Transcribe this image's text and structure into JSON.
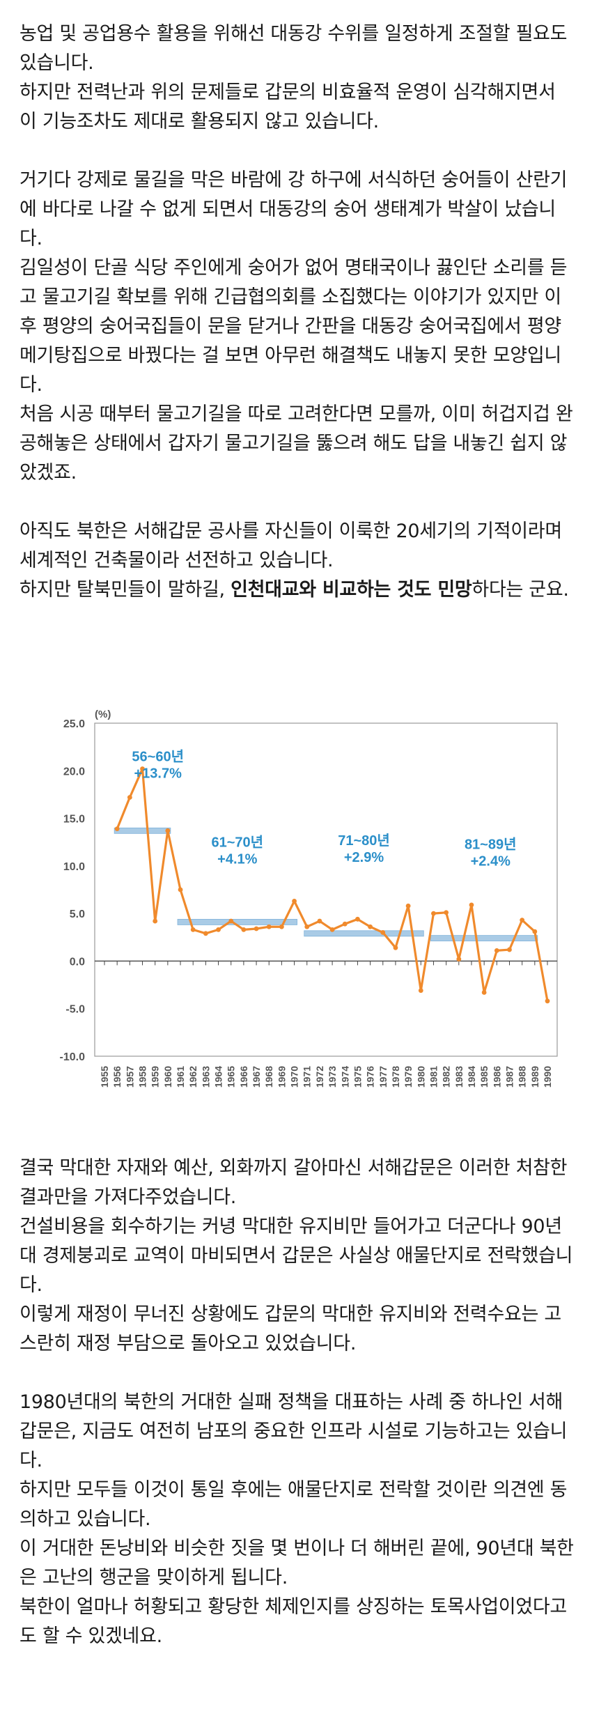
{
  "paragraphs": {
    "p1": "농업 및 공업용수 활용을 위해선 대동강 수위를 일정하게 조절할 필요도 있습니다.\n하지만 전력난과 위의 문제들로 갑문의 비효율적 운영이 심각해지면서 이 기능조차도 제대로 활용되지 않고 있습니다.",
    "p2": "거기다 강제로 물길을 막은 바람에 강 하구에 서식하던 숭어들이 산란기에 바다로 나갈 수 없게 되면서 대동강의 숭어 생태계가 박살이 났습니다.\n김일성이 단골 식당 주인에게 숭어가 없어 명태국이나 끓인단 소리를 듣고 물고기길 확보를 위해 긴급협의회를 소집했다는 이야기가 있지만 이후 평양의 숭어국집들이 문을 닫거나 간판을 대동강 숭어국집에서 평양 메기탕집으로 바꿨다는 걸 보면 아무런 해결책도 내놓지 못한 모양입니다.\n처음 시공 때부터 물고기길을 따로 고려한다면 모를까, 이미 허겁지겁 완공해놓은 상태에서 갑자기 물고기길을 뚫으려 해도 답을 내놓긴 쉽지 않았겠죠.",
    "p3_a": "아직도 북한은 서해갑문 공사를 자신들이 이룩한 20세기의 기적이라며 세계적인 건축물이라 선전하고 있습니다.\n하지만 탈북민들이 말하길, ",
    "p3_bold": "인천대교와 비교하는 것도 민망",
    "p3_c": "하다는 군요.",
    "p4": "결국 막대한 자재와 예산, 외화까지 갈아마신 서해갑문은 이러한 처참한 결과만을 가져다주었습니다.\n건설비용을 회수하기는 커녕 막대한 유지비만 들어가고 더군다나 90년대 경제붕괴로 교역이 마비되면서 갑문은 사실상 애물단지로 전락했습니다.\n이렇게 재정이 무너진 상황에도 갑문의 막대한 유지비와 전력수요는 고스란히 재정 부담으로 돌아오고 있었습니다.",
    "p5": "1980년대의 북한의 거대한 실패 정책을 대표하는 사례 중 하나인 서해갑문은, 지금도 여전히 남포의 중요한 인프라 시설로 기능하고는 있습니다.\n하지만 모두들 이것이 통일 후에는 애물단지로 전락할 것이란 의견엔 동의하고 있습니다.",
    "p6": "이 거대한 돈낭비와 비슷한 짓을 몇 번이나 더 해버린 끝에, 90년대 북한은 고난의 행군을 맞이하게 됩니다.\n북한이 얼마나 허황되고 황당한 체제인지를 상징하는 토목사업이었다고도 할 수 있겠네요."
  },
  "chart_data": {
    "type": "line",
    "unit_label": "(%)",
    "x": [
      1955,
      1956,
      1957,
      1958,
      1959,
      1960,
      1961,
      1962,
      1963,
      1964,
      1965,
      1966,
      1967,
      1968,
      1969,
      1970,
      1971,
      1972,
      1973,
      1974,
      1975,
      1976,
      1977,
      1978,
      1979,
      1980,
      1981,
      1982,
      1983,
      1984,
      1985,
      1986,
      1987,
      1988,
      1989,
      1990
    ],
    "y": [
      null,
      13.9,
      17.2,
      20.2,
      4.2,
      13.7,
      7.5,
      3.3,
      2.9,
      3.3,
      4.2,
      3.3,
      3.4,
      3.6,
      3.6,
      6.3,
      3.6,
      4.2,
      3.3,
      3.9,
      4.4,
      3.6,
      3.0,
      1.4,
      5.8,
      -3.1,
      5.0,
      5.1,
      0.2,
      5.9,
      -3.3,
      1.1,
      1.2,
      4.3,
      3.1,
      -4.2
    ],
    "ylim": [
      -10,
      25
    ],
    "yticks": [
      "25.0",
      "20.0",
      "15.0",
      "10.0",
      "5.0",
      "0.0",
      "-5.0",
      "-10.0"
    ],
    "ytick_values": [
      25,
      20,
      15,
      10,
      5,
      0,
      -5,
      -10
    ],
    "periods": [
      {
        "label": "56~60년",
        "value_label": "+13.7%",
        "start": 1956,
        "end": 1960,
        "avg": 13.7
      },
      {
        "label": "61~70년",
        "value_label": "+4.1%",
        "start": 1961,
        "end": 1970,
        "avg": 4.1
      },
      {
        "label": "71~80년",
        "value_label": "+2.9%",
        "start": 1971,
        "end": 1980,
        "avg": 2.9
      },
      {
        "label": "81~89년",
        "value_label": "+2.4%",
        "start": 1981,
        "end": 1989,
        "avg": 2.4
      }
    ],
    "grid": false,
    "line_color": "#f08a2c",
    "avg_bar_color": "#a9cbe6",
    "annotation_color": "#2b8fc9"
  }
}
